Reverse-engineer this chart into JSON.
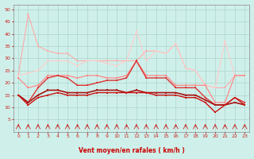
{
  "xlabel": "Vent moyen/en rafales ( km/h )",
  "xlim": [
    -0.5,
    23.5
  ],
  "ylim": [
    0,
    52
  ],
  "yticks": [
    5,
    10,
    15,
    20,
    25,
    30,
    35,
    40,
    45,
    50
  ],
  "xticks": [
    0,
    1,
    2,
    3,
    4,
    5,
    6,
    7,
    8,
    9,
    10,
    11,
    12,
    13,
    14,
    15,
    16,
    17,
    18,
    19,
    20,
    21,
    22,
    23
  ],
  "bg_color": "#cff0ea",
  "grid_color": "#aad4cc",
  "series": [
    {
      "segments": [
        {
          "x": [
            0,
            1
          ],
          "y": [
            23,
            48
          ]
        }
      ],
      "color": "#ffaaaa",
      "lw": 0.8,
      "marker": "s",
      "ms": 1.5
    },
    {
      "segments": [
        {
          "x": [
            1,
            2,
            3,
            4,
            5,
            6,
            7,
            8,
            9,
            10,
            11,
            12,
            13,
            14,
            15,
            16,
            17,
            18,
            19,
            20,
            21,
            22,
            23
          ],
          "y": [
            48,
            35,
            33,
            32,
            32,
            29,
            29,
            29,
            29,
            29,
            29,
            29,
            33,
            33,
            32,
            36,
            26,
            25,
            19,
            18,
            18,
            23,
            23
          ]
        }
      ],
      "color": "#ffaaaa",
      "lw": 0.8,
      "marker": "s",
      "ms": 1.5
    },
    {
      "segments": [
        {
          "x": [
            0,
            1,
            2,
            3,
            4,
            5,
            6,
            7,
            8,
            9,
            10,
            11,
            12,
            13,
            14,
            15,
            16,
            17,
            18,
            19,
            20,
            21,
            22,
            23
          ],
          "y": [
            23,
            24,
            25,
            29,
            29,
            29,
            27,
            29,
            29,
            28,
            27,
            29,
            41,
            29,
            33,
            32,
            36,
            26,
            25,
            19,
            18,
            37,
            23,
            23
          ]
        }
      ],
      "color": "#ffcccc",
      "lw": 0.8,
      "marker": "s",
      "ms": 1.5
    },
    {
      "segments": [
        {
          "x": [
            0,
            1,
            2,
            3,
            4,
            5,
            6,
            7,
            8,
            9,
            10,
            11,
            12,
            13,
            14,
            15,
            16,
            17,
            18,
            19,
            20,
            21,
            22,
            23
          ],
          "y": [
            22,
            18,
            19,
            23,
            23,
            23,
            22,
            23,
            23,
            22,
            22,
            23,
            29,
            23,
            23,
            23,
            19,
            19,
            19,
            19,
            12,
            12,
            23,
            23
          ]
        }
      ],
      "color": "#ff8888",
      "lw": 0.9,
      "marker": "s",
      "ms": 1.5
    },
    {
      "segments": [
        {
          "x": [
            0,
            1,
            2,
            3,
            4,
            5,
            6,
            7,
            8,
            9,
            10,
            11,
            12,
            13,
            14,
            15,
            16,
            17,
            18,
            19,
            20,
            21,
            22,
            23
          ],
          "y": [
            15,
            12,
            18,
            22,
            23,
            22,
            19,
            19,
            20,
            21,
            21,
            22,
            29,
            22,
            22,
            22,
            18,
            18,
            18,
            14,
            11,
            11,
            14,
            12
          ]
        }
      ],
      "color": "#dd3333",
      "lw": 1.0,
      "marker": "s",
      "ms": 1.5
    },
    {
      "segments": [
        {
          "x": [
            0,
            1,
            2,
            3,
            4,
            5,
            6,
            7,
            8,
            9,
            10,
            11,
            12,
            13,
            14,
            15,
            16,
            17,
            18,
            19,
            20,
            21,
            22,
            23
          ],
          "y": [
            15,
            12,
            15,
            17,
            17,
            16,
            16,
            16,
            17,
            17,
            17,
            16,
            17,
            16,
            16,
            16,
            16,
            15,
            15,
            13,
            11,
            11,
            12,
            11
          ]
        }
      ],
      "color": "#aa1111",
      "lw": 1.2,
      "marker": "s",
      "ms": 1.5
    },
    {
      "segments": [
        {
          "x": [
            0,
            1,
            2,
            3,
            4,
            5,
            6,
            7,
            8,
            9,
            10,
            11,
            12,
            13,
            14,
            15,
            16,
            17,
            18,
            19,
            20,
            21,
            22,
            23
          ],
          "y": [
            15,
            11,
            14,
            15,
            16,
            15,
            15,
            15,
            16,
            16,
            16,
            16,
            16,
            16,
            15,
            15,
            15,
            14,
            14,
            12,
            8,
            11,
            14,
            11
          ]
        }
      ],
      "color": "#cc1111",
      "lw": 1.0,
      "marker": "s",
      "ms": 1.5
    }
  ]
}
